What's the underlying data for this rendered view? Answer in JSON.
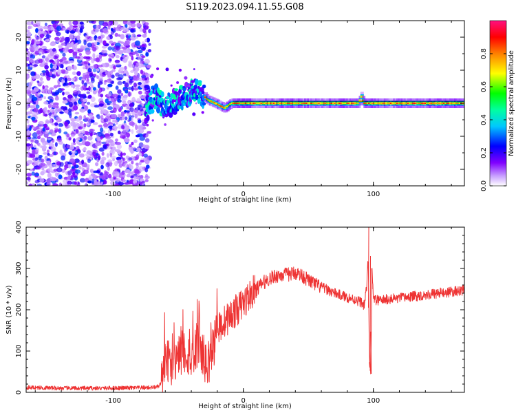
{
  "title": "S119.2023.094.11.55.G08",
  "chart_data": [
    {
      "type": "heatmap",
      "xlabel": "Height of straight line (km)",
      "ylabel": "Frequency (Hz)",
      "xlim": [
        -167,
        170
      ],
      "ylim": [
        -25,
        25
      ],
      "xticks": [
        -100,
        0,
        100
      ],
      "yticks": [
        -20,
        -10,
        0,
        10,
        20
      ],
      "colorbar": {
        "label": "Normalized spectral amplitude",
        "range": [
          0,
          1
        ],
        "ticks": [
          0.0,
          0.2,
          0.4,
          0.6,
          0.8
        ],
        "tick_labels": [
          "0.0",
          "0.2",
          "0.4",
          "0.6",
          "0.8"
        ],
        "colors": [
          "#ffffff",
          "#8000ff",
          "#0000ff",
          "#00ffff",
          "#00ff00",
          "#ffff00",
          "#ff8000",
          "#ff0000",
          "#ff00a0"
        ]
      },
      "regions": [
        {
          "x_from": -167,
          "x_to": -75,
          "description_value": "broadband noise",
          "amplitude": [
            0.05,
            0.25
          ]
        },
        {
          "x_from": -75,
          "x_to": -30,
          "description_value": "scattered signal",
          "amplitude": [
            0.2,
            0.5
          ]
        },
        {
          "x_from": -30,
          "x_to": 170,
          "description_value": "narrow line near 0 Hz",
          "amplitude": [
            0.7,
            0.9
          ]
        }
      ],
      "line_path": [
        {
          "x": -75,
          "y": -2
        },
        {
          "x": -68,
          "y": 2
        },
        {
          "x": -60,
          "y": -1
        },
        {
          "x": -50,
          "y": 1
        },
        {
          "x": -42,
          "y": 3
        },
        {
          "x": -35,
          "y": 4
        },
        {
          "x": -28,
          "y": 1
        },
        {
          "x": -22,
          "y": 0
        },
        {
          "x": -15,
          "y": -1.5
        },
        {
          "x": -10,
          "y": 0
        },
        {
          "x": 0,
          "y": 0
        },
        {
          "x": 88,
          "y": 0
        },
        {
          "x": 90,
          "y": 2
        },
        {
          "x": 92,
          "y": 0
        },
        {
          "x": 170,
          "y": 0
        }
      ]
    },
    {
      "type": "line",
      "xlabel": "Height of straight line (km)",
      "ylabel": "SNR (10 * v/v)",
      "xlim": [
        -167,
        170
      ],
      "ylim": [
        0,
        400
      ],
      "xticks": [
        -100,
        0,
        100
      ],
      "yticks": [
        0,
        100,
        200,
        300,
        400
      ],
      "color": "#ee3333",
      "series": [
        {
          "x": [
            -167,
            -140,
            -110,
            -80,
            -70,
            -65,
            -62,
            -60,
            -55,
            -50,
            -45,
            -40,
            -35,
            -32,
            -28,
            -25,
            -20,
            -15,
            -10,
            -5,
            0,
            5,
            10,
            15,
            20,
            25,
            30,
            35,
            40,
            45,
            50,
            55,
            60,
            65,
            70,
            75,
            80,
            85,
            90,
            93,
            95,
            96,
            97,
            98,
            99,
            100,
            105,
            110,
            120,
            130,
            140,
            150,
            160,
            170
          ],
          "y": [
            12,
            10,
            10,
            11,
            12,
            14,
            30,
            80,
            70,
            90,
            100,
            80,
            120,
            100,
            60,
            90,
            150,
            170,
            185,
            200,
            215,
            235,
            250,
            265,
            275,
            282,
            285,
            285,
            290,
            283,
            272,
            262,
            255,
            248,
            240,
            235,
            230,
            225,
            220,
            210,
            260,
            330,
            80,
            45,
            300,
            225,
            222,
            225,
            228,
            232,
            236,
            240,
            243,
            248
          ]
        }
      ]
    }
  ]
}
